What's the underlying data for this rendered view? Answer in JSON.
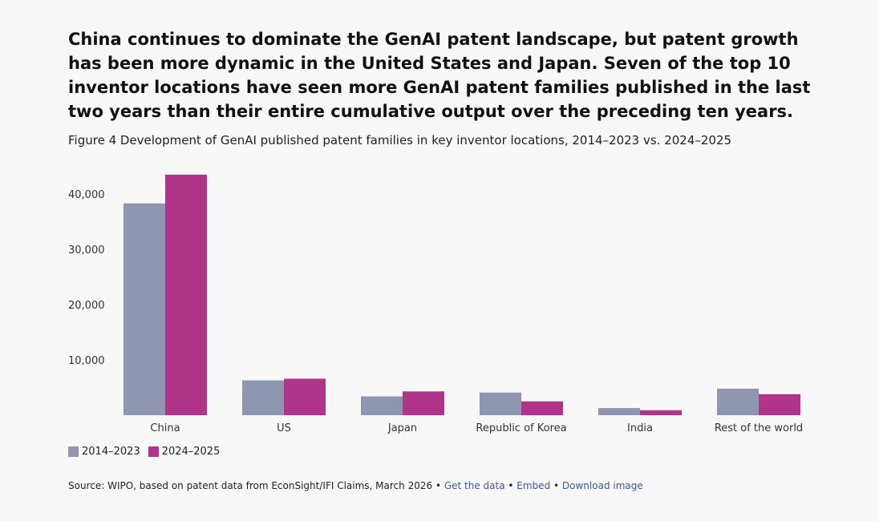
{
  "headline": "China continues to dominate the GenAI patent landscape, but patent growth has been more dynamic in the United States and Japan. Seven of the top 10 inventor locations have seen more GenAI patent families published in the last two years than their entire cumulative output over the preceding ten years.",
  "subtitle": "Figure 4 Development of GenAI published patent families in key inventor locations, 2014–2023 vs. 2024–2025",
  "colors": {
    "series_2014_2023": "#8f97b0",
    "series_2024_2025": "#b0358a"
  },
  "chart_data": {
    "type": "bar",
    "categories": [
      "China",
      "US",
      "Japan",
      "Republic of Korea",
      "India",
      "Rest of the world"
    ],
    "series": [
      {
        "name": "2014–2023",
        "values": [
          38300,
          6300,
          3400,
          4100,
          1300,
          4800
        ]
      },
      {
        "name": "2024–2025",
        "values": [
          43500,
          6600,
          4300,
          2500,
          900,
          3800
        ]
      }
    ],
    "yticks": [
      10000,
      20000,
      30000,
      40000
    ],
    "ytick_labels": [
      "10,000",
      "20,000",
      "30,000",
      "40,000"
    ],
    "ylim": [
      0,
      44000
    ],
    "grid": false,
    "legend_position": "bottom-left"
  },
  "source": {
    "text": "Source: WIPO, based on patent data from EconSight/IFI Claims, March 2026",
    "sep": " • ",
    "get_data": "Get the data",
    "embed": "Embed",
    "download": "Download image"
  }
}
